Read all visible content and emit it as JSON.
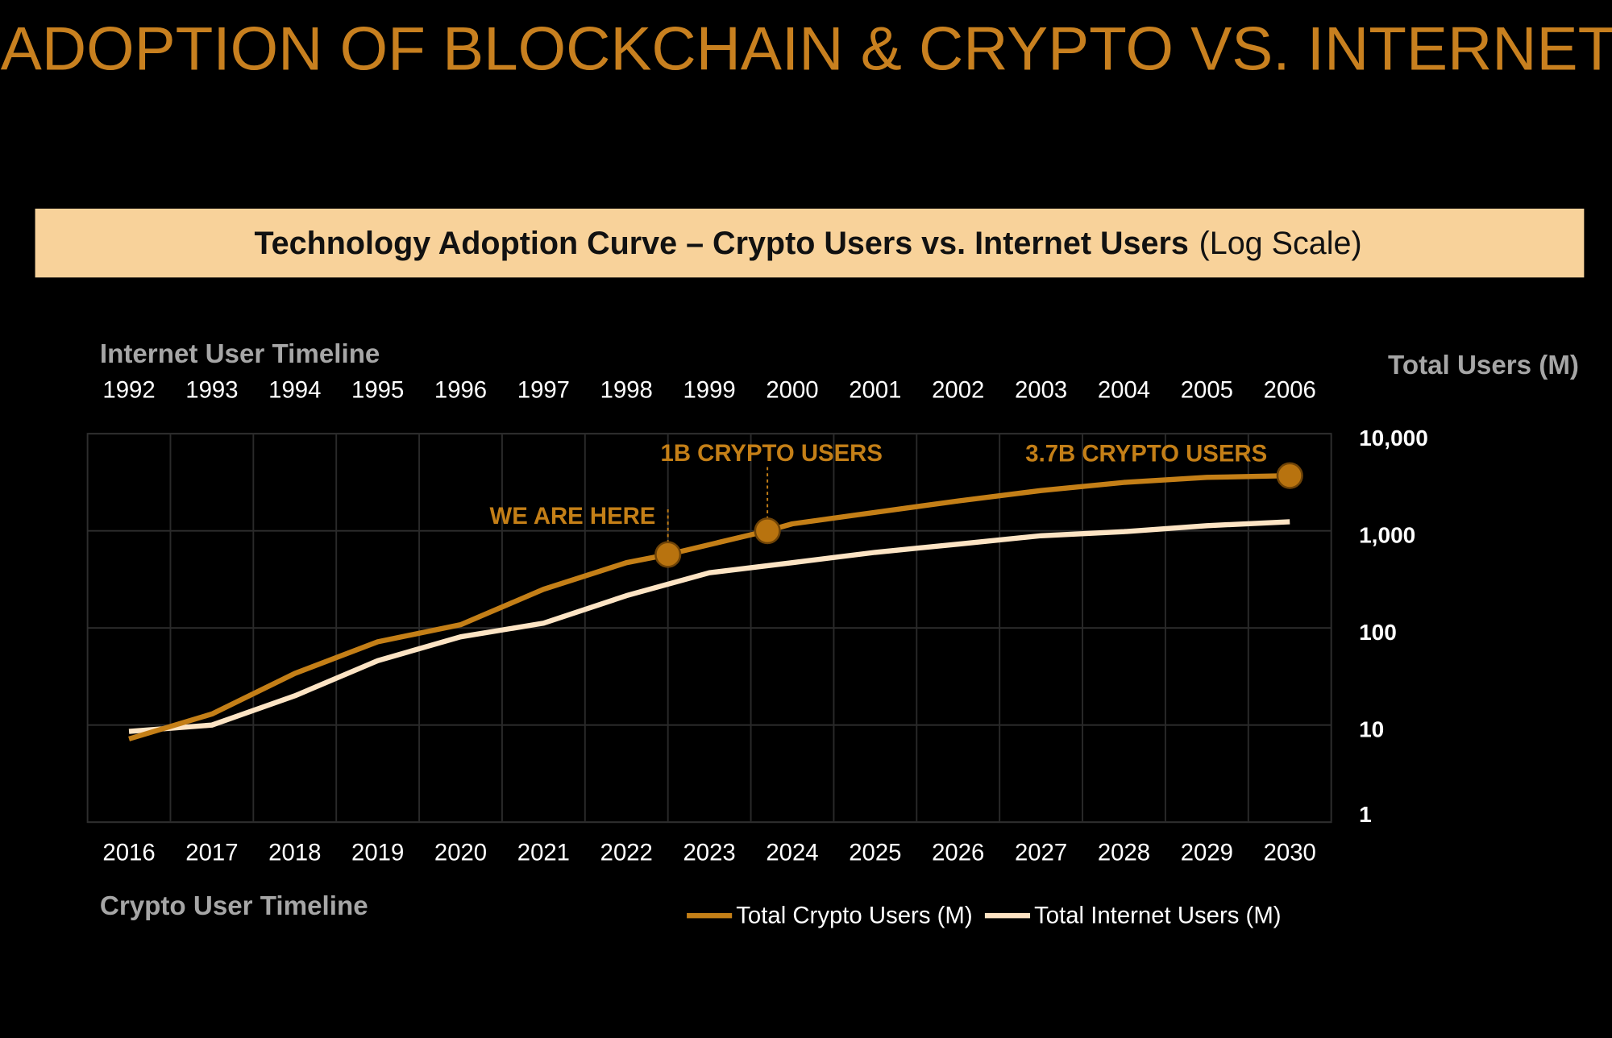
{
  "chart_data": {
    "type": "line",
    "title": "ADOPTION OF BLOCKCHAIN & CRYPTO VS. INTERNET",
    "subtitle": "Technology Adoption Curve – Crypto Users vs. Internet Users",
    "subtitle_note": "(Log Scale)",
    "x_label": "Crypto User Timeline",
    "x2_label": "Internet User Timeline",
    "y_label": "Total Users (M)",
    "log_y": true,
    "grid": true,
    "legend": "bottom",
    "xlim": [
      2015.5,
      2030.5
    ],
    "xticks": [
      2016,
      2017,
      2018,
      2019,
      2020,
      2021,
      2022,
      2023,
      2024,
      2025,
      2026,
      2027,
      2028,
      2029,
      2030
    ],
    "x2lim": [
      1991.5,
      2006.5
    ],
    "x2ticks": [
      1992,
      1993,
      1994,
      1995,
      1996,
      1997,
      1998,
      1999,
      2000,
      2001,
      2002,
      2003,
      2004,
      2005,
      2006
    ],
    "ylim": [
      1,
      10000
    ],
    "yticks": [
      {
        "value": 10000,
        "label": "10,000"
      },
      {
        "value": 1000,
        "label": "1,000"
      },
      100,
      10,
      1
    ],
    "series": [
      {
        "name": "Total Crypto Users (M)",
        "color": "#c47f17",
        "x": [
          2016,
          2017,
          2018,
          2019,
          2020,
          2021,
          2022,
          2022.5,
          2023.7,
          2024,
          2025,
          2026,
          2027,
          2028,
          2029,
          2030
        ],
        "values": [
          7.2,
          13,
          34,
          72,
          108,
          250,
          470,
          570,
          1000,
          1180,
          1550,
          2030,
          2600,
          3150,
          3550,
          3700
        ]
      },
      {
        "name": "Total Internet Users (M)",
        "color": "#fde4c4",
        "x": [
          2016,
          2017,
          2018,
          2019,
          2020,
          2021,
          2022,
          2023,
          2024,
          2025,
          2026,
          2027,
          2028,
          2029,
          2030
        ],
        "values": [
          8.6,
          10,
          20,
          46,
          81,
          112,
          215,
          370,
          470,
          600,
          730,
          890,
          980,
          1130,
          1240
        ]
      }
    ],
    "annotations": [
      {
        "text": "WE ARE HERE",
        "x": 2022.5,
        "y": 570
      },
      {
        "text": "1B CRYPTO USERS",
        "x": 2023.7,
        "y": 1000
      },
      {
        "text": "3.7B CRYPTO USERS",
        "x": 2030,
        "y": 3700
      }
    ]
  }
}
